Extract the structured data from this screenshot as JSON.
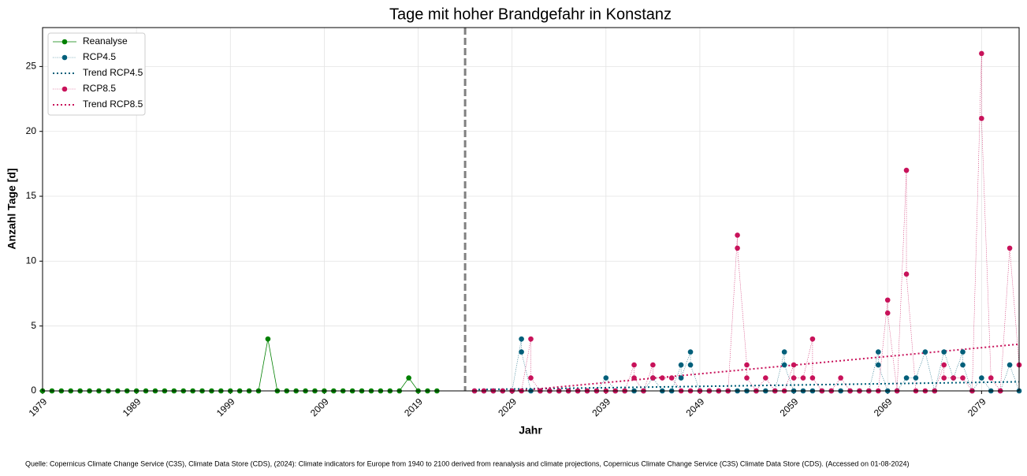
{
  "chart_data": {
    "type": "line",
    "title": "Tage mit hoher Brandgefahr in Konstanz",
    "x_label": "Jahr",
    "y_label": "Anzahl Tage [d]",
    "source": "Quelle: Copernicus Climate Change Service (C3S), Climate Data Store (CDS), (2024): Climate indicators for Europe from 1940 to 2100 derived from reanalysis and climate projections, Copernicus Climate Change Service (C3S) Climate Data Store (CDS). (Accessed on 01-08-2024)",
    "xlim": [
      1979,
      2083
    ],
    "ylim": [
      0,
      28
    ],
    "xticks": [
      1979,
      1989,
      1999,
      2009,
      2019,
      2029,
      2039,
      2049,
      2059,
      2069,
      2079
    ],
    "yticks": [
      0,
      5,
      10,
      15,
      20,
      25
    ],
    "grid": true,
    "legend": "upper-left",
    "divider_x": 2024,
    "series": [
      {
        "name": "Reanalyse",
        "color": "#008000",
        "style": "solid",
        "marker": true,
        "x": [
          1979,
          1980,
          1981,
          1982,
          1983,
          1984,
          1985,
          1986,
          1987,
          1988,
          1989,
          1990,
          1991,
          1992,
          1993,
          1994,
          1995,
          1996,
          1997,
          1998,
          1999,
          2000,
          2001,
          2002,
          2003,
          2004,
          2005,
          2006,
          2007,
          2008,
          2009,
          2010,
          2011,
          2012,
          2013,
          2014,
          2015,
          2016,
          2017,
          2018,
          2019,
          2020,
          2021
        ],
        "values": [
          0,
          0,
          0,
          0,
          0,
          0,
          0,
          0,
          0,
          0,
          0,
          0,
          0,
          0,
          0,
          0,
          0,
          0,
          0,
          0,
          0,
          0,
          0,
          0,
          4,
          0,
          0,
          0,
          0,
          0,
          0,
          0,
          0,
          0,
          0,
          0,
          0,
          0,
          0,
          1,
          0,
          0,
          0
        ]
      },
      {
        "name": "RCP4.5",
        "color": "#005f7a",
        "style": "dotted",
        "marker": true,
        "x": [
          2025,
          2026,
          2027,
          2028,
          2029,
          2030,
          2030,
          2031,
          2032,
          2033,
          2034,
          2035,
          2036,
          2037,
          2038,
          2039,
          2040,
          2041,
          2042,
          2043,
          2044,
          2045,
          2046,
          2047,
          2047,
          2048,
          2048,
          2049,
          2050,
          2051,
          2052,
          2053,
          2054,
          2055,
          2056,
          2057,
          2058,
          2058,
          2059,
          2060,
          2061,
          2062,
          2063,
          2064,
          2065,
          2066,
          2067,
          2068,
          2068,
          2069,
          2070,
          2071,
          2072,
          2073,
          2074,
          2075,
          2076,
          2077,
          2077,
          2078,
          2079,
          2080,
          2081,
          2082,
          2083
        ],
        "values": [
          0,
          0,
          0,
          0,
          0,
          4,
          3,
          0,
          0,
          0,
          0,
          0,
          0,
          0,
          0,
          1,
          0,
          0,
          0,
          0,
          1,
          0,
          0,
          2,
          1,
          3,
          2,
          0,
          0,
          0,
          0,
          0,
          0,
          0,
          0,
          0,
          3,
          2,
          0,
          0,
          0,
          0,
          0,
          0,
          0,
          0,
          0,
          3,
          2,
          0,
          0,
          1,
          1,
          3,
          0,
          3,
          1,
          3,
          2,
          0,
          1,
          0,
          0,
          2,
          0
        ]
      },
      {
        "name": "Trend RCP4.5",
        "color": "#005f7a",
        "style": "trend",
        "marker": false,
        "x": [
          2025,
          2083
        ],
        "values": [
          0.1,
          0.7
        ]
      },
      {
        "name": "RCP8.5",
        "color": "#c8125a",
        "style": "dotted",
        "marker": true,
        "x": [
          2025,
          2026,
          2027,
          2028,
          2029,
          2030,
          2031,
          2031,
          2032,
          2033,
          2034,
          2035,
          2036,
          2037,
          2038,
          2039,
          2040,
          2041,
          2042,
          2042,
          2043,
          2044,
          2044,
          2045,
          2046,
          2047,
          2048,
          2049,
          2050,
          2051,
          2052,
          2053,
          2053,
          2054,
          2054,
          2055,
          2056,
          2057,
          2058,
          2059,
          2059,
          2060,
          2061,
          2061,
          2062,
          2063,
          2064,
          2065,
          2066,
          2067,
          2068,
          2069,
          2069,
          2070,
          2071,
          2071,
          2072,
          2073,
          2074,
          2075,
          2075,
          2076,
          2077,
          2078,
          2079,
          2079,
          2080,
          2081,
          2082,
          2083
        ],
        "values": [
          0,
          0,
          0,
          0,
          0,
          0,
          4,
          1,
          0,
          0,
          0,
          0,
          0,
          0,
          0,
          0,
          0,
          0,
          2,
          1,
          0,
          2,
          1,
          1,
          1,
          0,
          0,
          0,
          0,
          0,
          0,
          12,
          11,
          2,
          1,
          0,
          1,
          0,
          0,
          2,
          1,
          1,
          4,
          1,
          0,
          0,
          1,
          0,
          0,
          0,
          0,
          7,
          6,
          0,
          17,
          9,
          0,
          0,
          0,
          2,
          1,
          1,
          1,
          0,
          26,
          21,
          1,
          0,
          11,
          2
        ]
      },
      {
        "name": "Trend RCP8.5",
        "color": "#c8125a",
        "style": "trend",
        "marker": false,
        "x": [
          2025,
          2083
        ],
        "values": [
          -0.3,
          3.6
        ]
      }
    ]
  }
}
